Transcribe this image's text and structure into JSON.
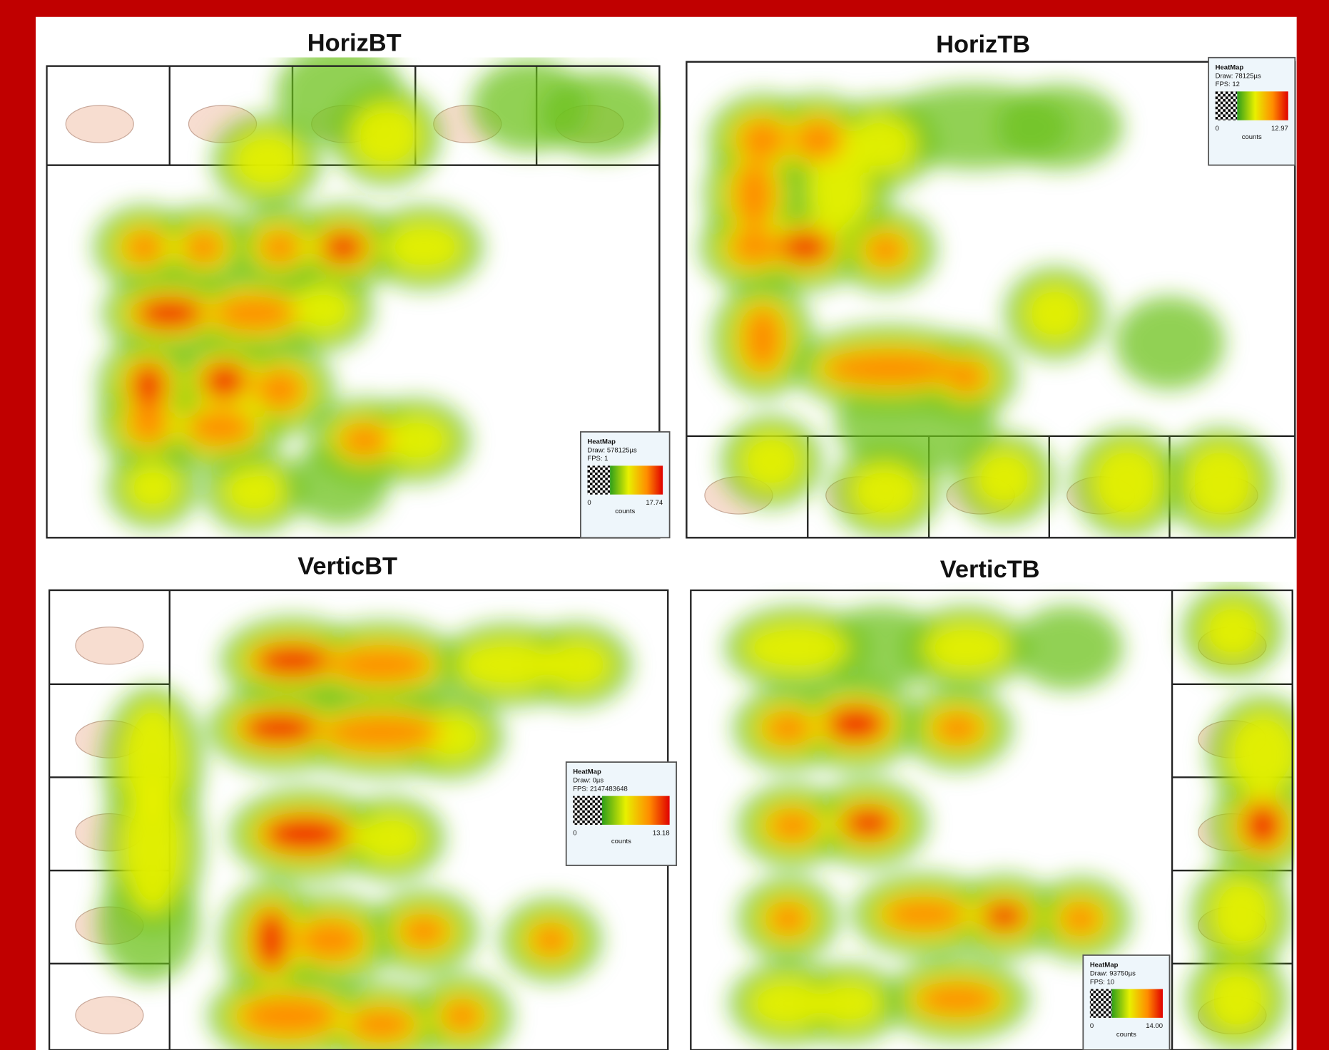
{
  "panels": [
    {
      "title": "HorizBT",
      "legend": {
        "title": "HeatMap",
        "draw": "Draw: 578125µs",
        "fps": "FPS: 1",
        "min": "0",
        "max": "17.74",
        "unit": "counts"
      }
    },
    {
      "title": "HorizTB",
      "legend": {
        "title": "HeatMap",
        "draw": "Draw: 78125µs",
        "fps": "FPS: 12",
        "min": "0",
        "max": "12.97",
        "unit": "counts"
      }
    },
    {
      "title": "VerticBT",
      "legend": {
        "title": "HeatMap",
        "draw": "Draw: 0µs",
        "fps": "FPS: 2147483648",
        "min": "0",
        "max": "13.18",
        "unit": "counts"
      }
    },
    {
      "title": "VerticTB",
      "legend": {
        "title": "HeatMap",
        "draw": "Draw: 93750µs",
        "fps": "FPS: 10",
        "min": "0",
        "max": "14.00",
        "unit": "counts"
      }
    }
  ]
}
